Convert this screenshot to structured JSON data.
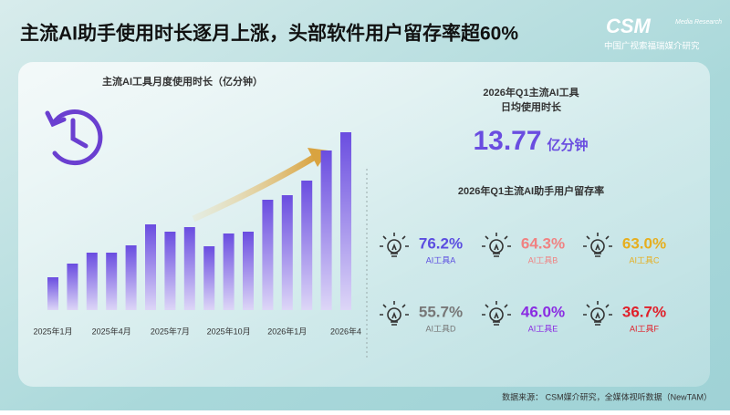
{
  "title": "主流AI助手使用时长逐月上涨，头部软件用户留存率超60%",
  "logo": {
    "mark": "CSM",
    "sub": "Media Research",
    "name": "中国广视索福瑞媒介研究"
  },
  "chart_data": {
    "type": "bar",
    "title": "主流AI工具月度使用时长（亿分钟）",
    "categories": [
      "2025年1月",
      null,
      null,
      "2025年4月",
      null,
      null,
      "2025年7月",
      null,
      null,
      "2025年10月",
      null,
      null,
      "2026年1月",
      null,
      null,
      "2026年4"
    ],
    "values": [
      36,
      51,
      63,
      63,
      71,
      94,
      86,
      91,
      70,
      84,
      86,
      121,
      126,
      142,
      175,
      195
    ],
    "color": "#6a4de0"
  },
  "daily": {
    "title": "2026年Q1主流AI工具",
    "subtitle": "日均使用时长",
    "value": "13.77",
    "unit": "亿分钟"
  },
  "retention": {
    "title": "2026年Q1主流AI助手用户留存率",
    "items": [
      {
        "value": "76.2%",
        "name": "AI工具A",
        "color": "#5b4de0"
      },
      {
        "value": "64.3%",
        "name": "AI工具B",
        "color": "#f08282"
      },
      {
        "value": "63.0%",
        "name": "AI工具C",
        "color": "#e6ae1e"
      },
      {
        "value": "55.7%",
        "name": "AI工具D",
        "color": "#777777"
      },
      {
        "value": "46.0%",
        "name": "AI工具E",
        "color": "#8a2be2"
      },
      {
        "value": "36.7%",
        "name": "AI工具F",
        "color": "#e0202a"
      }
    ]
  },
  "source": "数据来源： CSM媒介研究，全媒体视听数据（NewTAM）"
}
